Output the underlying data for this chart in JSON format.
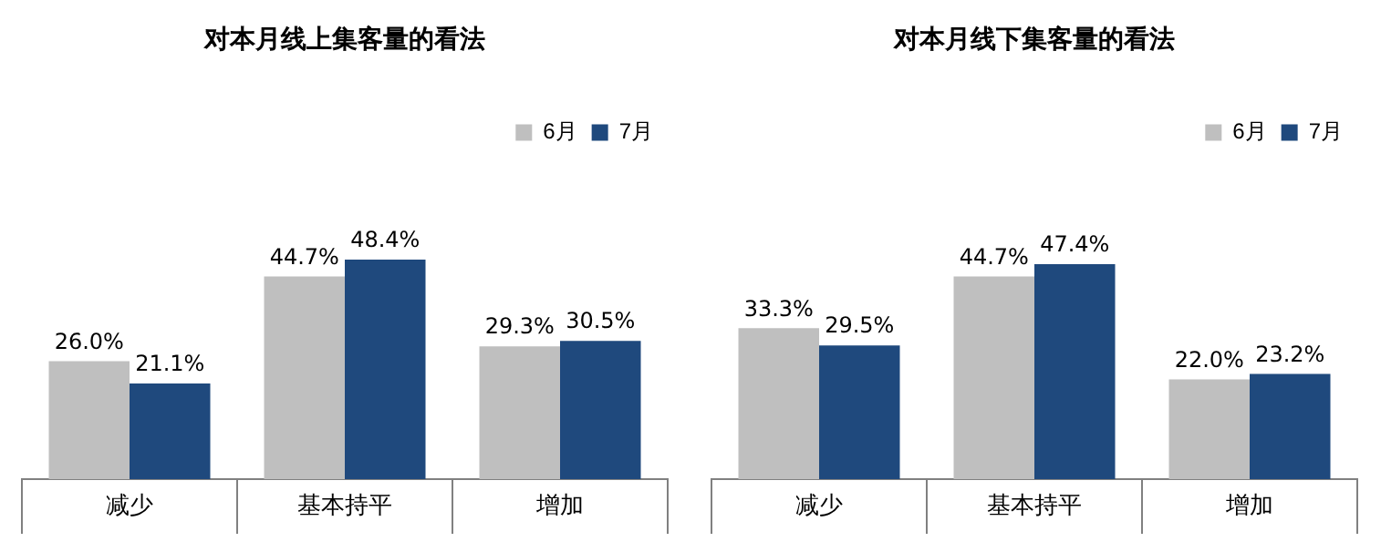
{
  "chart_data": [
    {
      "type": "bar",
      "title": "对本月线上集客量的看法",
      "categories": [
        "减少",
        "基本持平",
        "增加"
      ],
      "legend": "top right",
      "series": [
        {
          "name": "6月",
          "color": "#bfbfbf",
          "values": [
            26.0,
            44.7,
            29.3
          ],
          "value_labels": [
            "26.0%",
            "44.7%",
            "29.3%"
          ]
        },
        {
          "name": "7月",
          "color": "#1f497d",
          "values": [
            21.1,
            48.4,
            30.5
          ],
          "value_labels": [
            "21.1%",
            "48.4%",
            "30.5%"
          ]
        }
      ]
    },
    {
      "type": "bar",
      "title": "对本月线下集客量的看法",
      "categories": [
        "减少",
        "基本持平",
        "增加"
      ],
      "legend": "top right",
      "series": [
        {
          "name": "6月",
          "color": "#bfbfbf",
          "values": [
            33.3,
            44.7,
            22.0
          ],
          "value_labels": [
            "33.3%",
            "44.7%",
            "22.0%"
          ]
        },
        {
          "name": "7月",
          "color": "#1f497d",
          "values": [
            29.5,
            47.4,
            23.2
          ],
          "value_labels": [
            "29.5%",
            "47.4%",
            "23.2%"
          ]
        }
      ]
    }
  ]
}
